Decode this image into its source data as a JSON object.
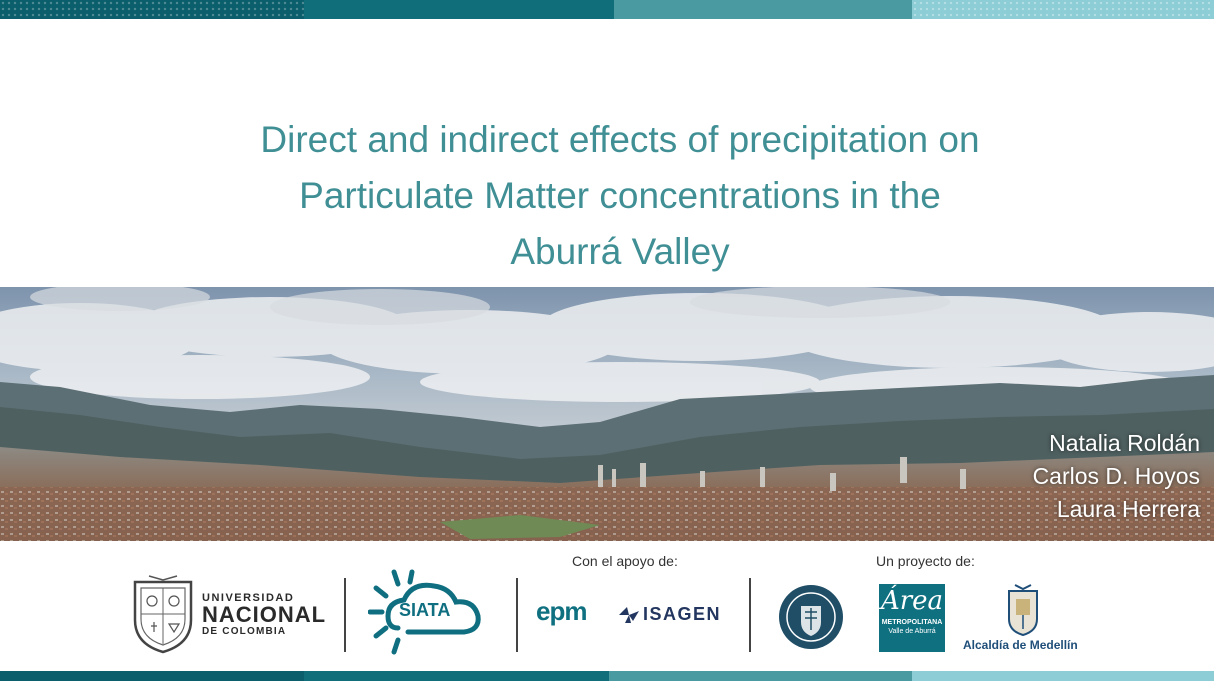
{
  "slide": {
    "title_lines": [
      "Direct and indirect effects of precipitation on",
      "Particulate Matter concentrations in the",
      "Aburrá Valley"
    ],
    "authors": [
      "Natalia Roldán",
      "Carlos D. Hoyos",
      "Laura Herrera"
    ]
  },
  "footer": {
    "support_label": "Con el apoyo de:",
    "project_label": "Un proyecto de:",
    "logos": {
      "unal": {
        "line1": "UNIVERSIDAD",
        "line2": "NACIONAL",
        "line3": "DE COLOMBIA"
      },
      "siata": "SIATA",
      "epm": "epm",
      "isagen": "ISAGEN",
      "area": {
        "mark": "Área",
        "line1": "METROPOLITANA",
        "line2": "Valle de Aburrá"
      },
      "alcaldia": "Alcaldía de Medellín"
    }
  },
  "colors": {
    "title": "#3f8f95",
    "band_dark": "#0b5e6b",
    "band_mid": "#0f6e79",
    "band_teal": "#4a9aa1",
    "band_light": "#8ccdd6"
  }
}
